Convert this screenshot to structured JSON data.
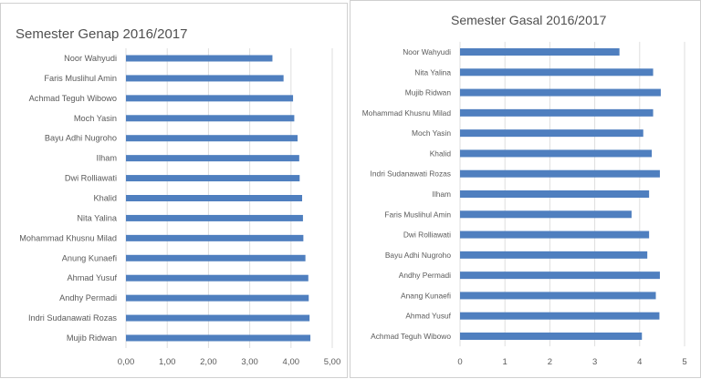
{
  "chart_data": [
    {
      "type": "bar",
      "orientation": "horizontal",
      "title": "Semester Genap 2016/2017",
      "categories": [
        "Noor Wahyudi",
        "Faris Muslihul Amin",
        "Achmad Teguh Wibowo",
        "Moch Yasin",
        "Bayu Adhi Nugroho",
        "Ilham",
        "Dwi Rolliawati",
        "Khalid",
        "Nita Yalina",
        "Mohammad Khusnu Milad",
        "Anung Kunaefi",
        "Ahmad Yusuf",
        "Andhy Permadi",
        "Indri Sudanawati Rozas",
        "Mujib Ridwan"
      ],
      "values": [
        3.55,
        3.82,
        4.05,
        4.08,
        4.16,
        4.2,
        4.21,
        4.27,
        4.29,
        4.3,
        4.35,
        4.42,
        4.43,
        4.45,
        4.47
      ],
      "xlim": [
        0,
        5
      ],
      "xticks": [
        "0,00",
        "1,00",
        "2,00",
        "3,00",
        "4,00",
        "5,00"
      ],
      "bar_color": "#4f7fbf",
      "grid": true,
      "xlabel": "",
      "ylabel": ""
    },
    {
      "type": "bar",
      "orientation": "horizontal",
      "title": "Semester Gasal 2016/2017",
      "categories": [
        "Noor Wahyudi",
        "Nita Yalina",
        "Mujib Ridwan",
        "Mohammad Khusnu Milad",
        "Moch Yasin",
        "Khalid",
        "Indri Sudanawati Rozas",
        "Ilham",
        "Faris Muslihul Amin",
        "Dwi Rolliawati",
        "Bayu Adhi Nugroho",
        "Andhy Permadi",
        "Anang Kunaefi",
        "Ahmad Yusuf",
        "Achmad Teguh Wibowo"
      ],
      "values": [
        3.55,
        4.3,
        4.47,
        4.3,
        4.08,
        4.27,
        4.45,
        4.21,
        3.82,
        4.21,
        4.17,
        4.45,
        4.36,
        4.44,
        4.05
      ],
      "xlim": [
        0,
        5
      ],
      "xticks": [
        "0",
        "1",
        "2",
        "3",
        "4",
        "5"
      ],
      "bar_color": "#4f7fbf",
      "grid": true,
      "xlabel": "",
      "ylabel": ""
    }
  ]
}
